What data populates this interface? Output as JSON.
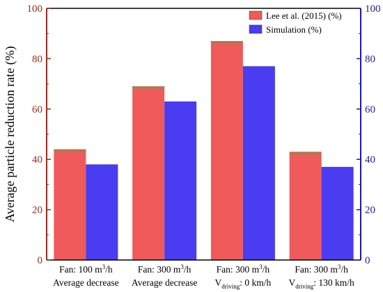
{
  "chart_data": {
    "type": "bar",
    "categories": [
      {
        "line1": "Fan: 100 m",
        "line1_sup": "3",
        "line1_end": "/h",
        "line2": "Average decrease",
        "line2_sub": "",
        "line2_end": ""
      },
      {
        "line1": "Fan: 300 m",
        "line1_sup": "3",
        "line1_end": "/h",
        "line2": "Average decrease",
        "line2_sub": "",
        "line2_end": ""
      },
      {
        "line1": "Fan: 300 m",
        "line1_sup": "3",
        "line1_end": "/h",
        "line2": "V",
        "line2_sub": "driving",
        "line2_end": ": 0 km/h"
      },
      {
        "line1": "Fan: 300 m",
        "line1_sup": "3",
        "line1_end": "/h",
        "line2": "V",
        "line2_sub": "driving",
        "line2_end": ": 130 km/h"
      }
    ],
    "series": [
      {
        "name": "Lee et al. (2015) (%)",
        "values": [
          44,
          69,
          87,
          43
        ],
        "color": "#f05a5a",
        "cap_color": "#b07850"
      },
      {
        "name": "Simulation (%)",
        "values": [
          38,
          63,
          77,
          37
        ],
        "color": "#4a3cf0"
      }
    ],
    "ylabel": "Average particle reduction rate (%)",
    "ylim": [
      0,
      100
    ],
    "yticks": [
      0,
      20,
      40,
      60,
      80,
      100
    ],
    "left_axis_color": "#a0281e",
    "right_axis_color": "#1a1aa0",
    "legend_position": "top-right",
    "grid": false
  }
}
